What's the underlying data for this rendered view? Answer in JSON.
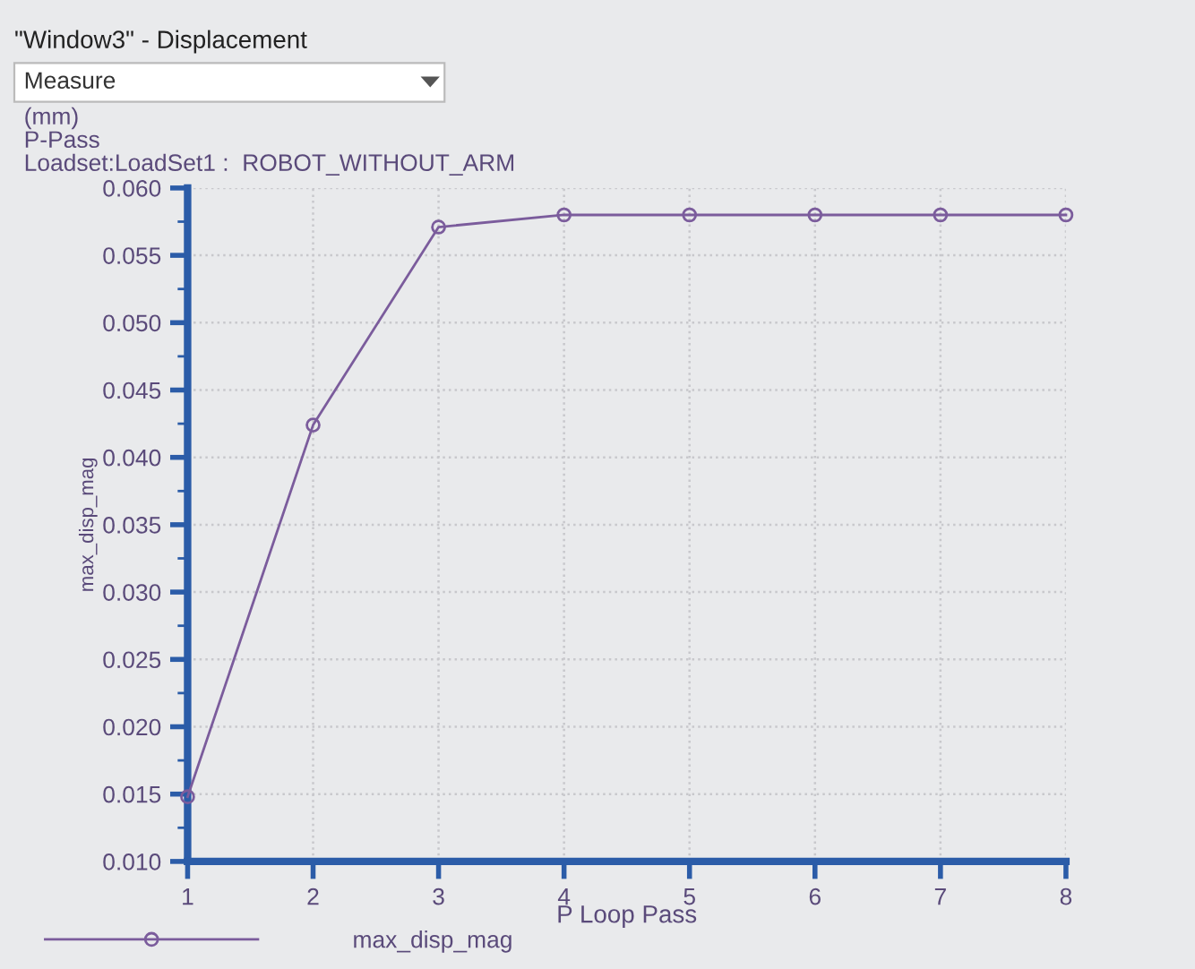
{
  "chart_data": {
    "type": "line",
    "title": "\"Window3\" - Displacement",
    "annotations": [
      "Measure",
      "(mm)",
      "P-Pass",
      "Loadset:LoadSet1 :  ROBOT_WITHOUT_ARM"
    ],
    "xlabel": "P Loop Pass",
    "ylabel": "max_disp_mag",
    "x": [
      1,
      2,
      3,
      4,
      5,
      6,
      7,
      8
    ],
    "series": [
      {
        "name": "max_disp_mag",
        "color": "#7b5c9c",
        "values": [
          0.0148,
          0.0424,
          0.0571,
          0.058,
          0.058,
          0.058,
          0.058,
          0.058
        ]
      }
    ],
    "xlim": [
      1,
      8
    ],
    "xticks": [
      1,
      2,
      3,
      4,
      5,
      6,
      7,
      8
    ],
    "ylim": [
      0.01,
      0.06
    ],
    "yticks": [
      {
        "value": 0.01,
        "label": "0.010"
      },
      {
        "value": 0.015,
        "label": "0.015"
      },
      {
        "value": 0.02,
        "label": "0.020"
      },
      {
        "value": 0.025,
        "label": "0.025"
      },
      {
        "value": 0.03,
        "label": "0.030"
      },
      {
        "value": 0.035,
        "label": "0.035"
      },
      {
        "value": 0.04,
        "label": "0.040"
      },
      {
        "value": 0.045,
        "label": "0.045"
      },
      {
        "value": 0.05,
        "label": "0.050"
      },
      {
        "value": 0.055,
        "label": "0.055"
      },
      {
        "value": 0.06,
        "label": "0.060"
      }
    ],
    "grid": true,
    "legend": "bottom",
    "marker": "circle",
    "line_style": "solid"
  }
}
